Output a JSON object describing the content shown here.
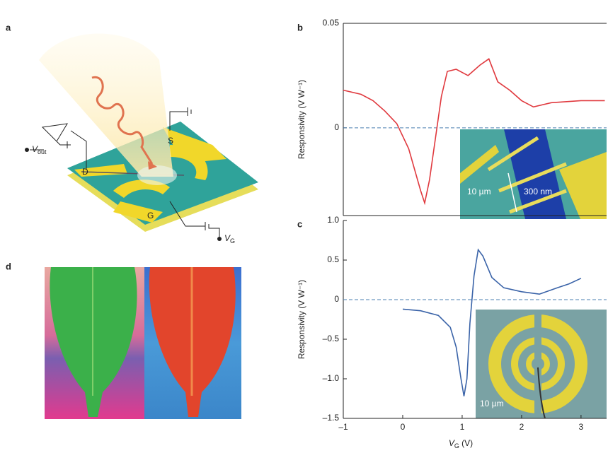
{
  "panel_labels": [
    "a",
    "b",
    "c",
    "d"
  ],
  "diagram": {
    "source": "S",
    "drain": "D",
    "gate": "G",
    "vout": {
      "main": "V",
      "sub": "out"
    },
    "vg": {
      "main": "V",
      "sub": "G"
    }
  },
  "chart_data": [
    {
      "type": "line",
      "ylabel": "Responsivity (V W⁻¹)",
      "xlim": [
        -1,
        3.43
      ],
      "ylim": [
        -0.042,
        0.05
      ],
      "yticks": [
        0.05,
        0
      ],
      "x": [
        -1,
        -0.7,
        -0.5,
        -0.3,
        -0.1,
        0.1,
        0.2,
        0.3,
        0.37,
        0.45,
        0.55,
        0.65,
        0.75,
        0.9,
        1.1,
        1.3,
        1.45,
        1.6,
        1.8,
        2.0,
        2.2,
        2.5,
        3.0,
        3.4
      ],
      "series": [
        {
          "color": "#e0393e",
          "values": [
            0.018,
            0.016,
            0.013,
            0.008,
            0.002,
            -0.01,
            -0.02,
            -0.03,
            -0.036,
            -0.025,
            -0.005,
            0.015,
            0.027,
            0.028,
            0.025,
            0.03,
            0.033,
            0.022,
            0.018,
            0.013,
            0.01,
            0.012,
            0.013,
            0.013
          ]
        }
      ],
      "hline": 0,
      "annotations": [
        "10 µm",
        "300 nm"
      ]
    },
    {
      "type": "line",
      "ylabel": "Responsivity (V W⁻¹)",
      "xlabel": {
        "main": "V",
        "sub": "G",
        "rest": " (V)"
      },
      "xlim": [
        -1,
        3.43
      ],
      "ylim": [
        -1.5,
        1.0
      ],
      "xticks": [
        {
          "value": -1,
          "label": "–1"
        },
        0,
        1,
        2,
        3
      ],
      "yticks": [
        {
          "value": 1,
          "label": "1.0"
        },
        0.5,
        0,
        {
          "value": -0.5,
          "label": "–0.5"
        },
        {
          "value": -1,
          "label": "–1.0"
        },
        {
          "value": -1.5,
          "label": "–1.5"
        }
      ],
      "x": [
        0,
        0.3,
        0.6,
        0.8,
        0.9,
        0.98,
        1.03,
        1.08,
        1.13,
        1.2,
        1.27,
        1.35,
        1.5,
        1.7,
        2.0,
        2.3,
        2.6,
        2.8,
        3.0
      ],
      "series": [
        {
          "color": "#3a63a8",
          "values": [
            -0.12,
            -0.14,
            -0.2,
            -0.35,
            -0.6,
            -1.0,
            -1.22,
            -1.0,
            -0.3,
            0.3,
            0.63,
            0.55,
            0.28,
            0.15,
            0.1,
            0.07,
            0.15,
            0.2,
            0.27
          ]
        }
      ],
      "hline": 0,
      "annotations": [
        "10 µm"
      ]
    }
  ]
}
